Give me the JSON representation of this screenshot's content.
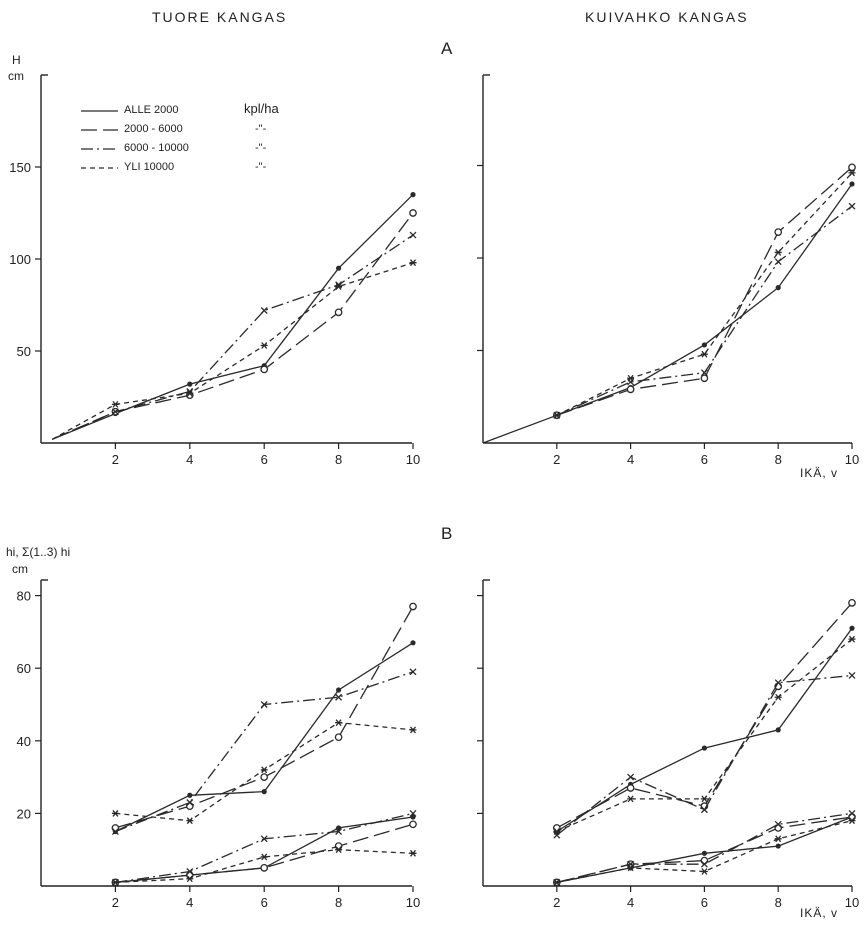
{
  "page": {
    "left_title": "TUORE KANGAS",
    "right_title": "KUIVAHKO KANGAS",
    "panel_a": "A",
    "panel_b": "B",
    "ylabel_a_var": "H",
    "ylabel_a_unit": "cm",
    "ylabel_b_var": "hi, Σ(1..3) hi",
    "ylabel_b_unit": "cm",
    "xlabel": "IKÄ, v"
  },
  "legend": {
    "unit": "kpl/ha",
    "ditto": "-\"-",
    "items": [
      "ALLE 2000",
      "2000 - 6000",
      "6000 - 10000",
      "YLI 10000"
    ]
  },
  "colors": {
    "line": "#2a2a2a",
    "axis": "#222222"
  },
  "chart_data": [
    {
      "type": "line",
      "panel": "A",
      "column": "TUORE KANGAS",
      "ylabel": "H cm",
      "x_ticks": [
        2,
        4,
        6,
        8,
        10
      ],
      "y_ticks": [
        50,
        100,
        150
      ],
      "ylim": [
        0,
        200
      ],
      "series": [
        {
          "name": "ALLE 2000",
          "points": [
            [
              0.3,
              2
            ],
            [
              2,
              16
            ],
            [
              4,
              32
            ],
            [
              6,
              42
            ],
            [
              8,
              95
            ],
            [
              10,
              135
            ]
          ]
        },
        {
          "name": "2000 - 6000",
          "points": [
            [
              0.3,
              2
            ],
            [
              2,
              17
            ],
            [
              4,
              26
            ],
            [
              6,
              40
            ],
            [
              8,
              71
            ],
            [
              10,
              125
            ]
          ]
        },
        {
          "name": "6000 - 10000",
          "points": [
            [
              0.3,
              2
            ],
            [
              2,
              17
            ],
            [
              4,
              28
            ],
            [
              6,
              72
            ],
            [
              8,
              86
            ],
            [
              10,
              113
            ]
          ]
        },
        {
          "name": "YLI 10000",
          "points": [
            [
              0.3,
              2
            ],
            [
              2,
              21
            ],
            [
              4,
              27
            ],
            [
              6,
              53
            ],
            [
              8,
              85
            ],
            [
              10,
              98
            ]
          ]
        }
      ]
    },
    {
      "type": "line",
      "panel": "A",
      "column": "KUIVAHKO KANGAS",
      "xlabel": "IKÄ, v",
      "x_ticks": [
        2,
        4,
        6,
        8,
        10
      ],
      "y_ticks": [
        50,
        100,
        150
      ],
      "ylim": [
        0,
        200
      ],
      "series": [
        {
          "name": "ALLE 2000",
          "points": [
            [
              0,
              0
            ],
            [
              2,
              15
            ],
            [
              4,
              30
            ],
            [
              6,
              53
            ],
            [
              8,
              84
            ],
            [
              10,
              140
            ]
          ]
        },
        {
          "name": "2000 - 6000",
          "points": [
            [
              2,
              15
            ],
            [
              4,
              29
            ],
            [
              6,
              35
            ],
            [
              8,
              114
            ],
            [
              10,
              149
            ]
          ]
        },
        {
          "name": "6000 - 10000",
          "points": [
            [
              2,
              15
            ],
            [
              4,
              33
            ],
            [
              6,
              38
            ],
            [
              8,
              98
            ],
            [
              10,
              128
            ]
          ]
        },
        {
          "name": "YLI 10000",
          "points": [
            [
              2,
              15
            ],
            [
              4,
              35
            ],
            [
              6,
              48
            ],
            [
              8,
              103
            ],
            [
              10,
              146
            ]
          ]
        }
      ]
    },
    {
      "type": "line",
      "panel": "B",
      "column": "TUORE KANGAS",
      "ylabel": "hi, Σ(1..3) hi cm",
      "x_ticks": [
        2,
        4,
        6,
        8,
        10
      ],
      "y_ticks": [
        20,
        40,
        60,
        80
      ],
      "ylim": [
        0,
        90
      ],
      "series": [
        {
          "name": "ALLE 2000",
          "points": [
            [
              2,
              15
            ],
            [
              4,
              25
            ],
            [
              6,
              26
            ],
            [
              8,
              54
            ],
            [
              10,
              67
            ]
          ]
        },
        {
          "name": "2000 - 6000",
          "points": [
            [
              2,
              16
            ],
            [
              4,
              22
            ],
            [
              6,
              30
            ],
            [
              8,
              41
            ],
            [
              10,
              77
            ]
          ]
        },
        {
          "name": "6000 - 10000",
          "points": [
            [
              2,
              15
            ],
            [
              4,
              23
            ],
            [
              6,
              50
            ],
            [
              8,
              52
            ],
            [
              10,
              59
            ]
          ]
        },
        {
          "name": "YLI 10000",
          "points": [
            [
              2,
              20
            ],
            [
              4,
              18
            ],
            [
              6,
              32
            ],
            [
              8,
              45
            ],
            [
              10,
              43
            ]
          ]
        },
        {
          "name": "ALLE 2000",
          "points": [
            [
              2,
              1
            ],
            [
              4,
              3
            ],
            [
              6,
              5
            ],
            [
              8,
              16
            ],
            [
              10,
              19
            ]
          ]
        },
        {
          "name": "2000 - 6000",
          "points": [
            [
              2,
              1
            ],
            [
              4,
              3
            ],
            [
              6,
              5
            ],
            [
              8,
              11
            ],
            [
              10,
              17
            ]
          ]
        },
        {
          "name": "6000 - 10000",
          "points": [
            [
              2,
              1
            ],
            [
              4,
              4
            ],
            [
              6,
              13
            ],
            [
              8,
              15
            ],
            [
              10,
              20
            ]
          ]
        },
        {
          "name": "YLI 10000",
          "points": [
            [
              2,
              1
            ],
            [
              4,
              2
            ],
            [
              6,
              8
            ],
            [
              8,
              10
            ],
            [
              10,
              9
            ]
          ]
        }
      ]
    },
    {
      "type": "line",
      "panel": "B",
      "column": "KUIVAHKO KANGAS",
      "xlabel": "IKÄ, v",
      "x_ticks": [
        2,
        4,
        6,
        8,
        10
      ],
      "y_ticks": [
        20,
        40,
        60,
        80
      ],
      "ylim": [
        0,
        90
      ],
      "series": [
        {
          "name": "ALLE 2000",
          "points": [
            [
              2,
              15
            ],
            [
              4,
              28
            ],
            [
              6,
              38
            ],
            [
              8,
              43
            ],
            [
              10,
              71
            ]
          ]
        },
        {
          "name": "2000 - 6000",
          "points": [
            [
              2,
              16
            ],
            [
              4,
              27
            ],
            [
              6,
              22
            ],
            [
              8,
              55
            ],
            [
              10,
              78
            ]
          ]
        },
        {
          "name": "6000 - 10000",
          "points": [
            [
              2,
              14
            ],
            [
              4,
              30
            ],
            [
              6,
              21
            ],
            [
              8,
              56
            ],
            [
              10,
              58
            ]
          ]
        },
        {
          "name": "YLI 10000",
          "points": [
            [
              2,
              15
            ],
            [
              4,
              24
            ],
            [
              6,
              24
            ],
            [
              8,
              52
            ],
            [
              10,
              68
            ]
          ]
        },
        {
          "name": "ALLE 2000",
          "points": [
            [
              2,
              1
            ],
            [
              4,
              5
            ],
            [
              6,
              9
            ],
            [
              8,
              11
            ],
            [
              10,
              19
            ]
          ]
        },
        {
          "name": "2000 - 6000",
          "points": [
            [
              2,
              1
            ],
            [
              4,
              6
            ],
            [
              6,
              7
            ],
            [
              8,
              16
            ],
            [
              10,
              19
            ]
          ]
        },
        {
          "name": "6000 - 10000",
          "points": [
            [
              2,
              1
            ],
            [
              4,
              6
            ],
            [
              6,
              6
            ],
            [
              8,
              17
            ],
            [
              10,
              20
            ]
          ]
        },
        {
          "name": "YLI 10000",
          "points": [
            [
              2,
              1
            ],
            [
              4,
              5
            ],
            [
              6,
              4
            ],
            [
              8,
              13
            ],
            [
              10,
              18
            ]
          ]
        }
      ]
    }
  ]
}
